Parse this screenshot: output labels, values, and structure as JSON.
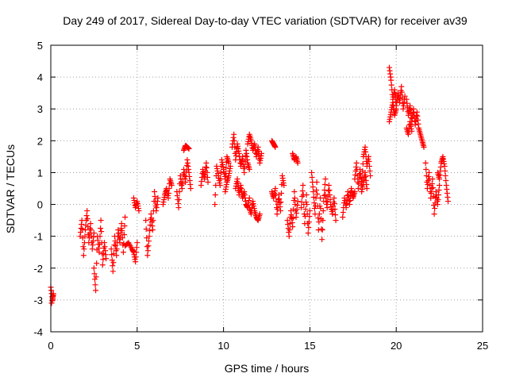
{
  "chart_data": {
    "type": "scatter",
    "title": "Day 249 of 2017, Sidereal Day-to-day VTEC variation (SDTVAR) for receiver av39",
    "xlabel": "GPS time / hours",
    "ylabel": "SDTVAR / TECUs",
    "xlim": [
      0,
      25
    ],
    "ylim": [
      -4,
      5
    ],
    "xticks": [
      0,
      5,
      10,
      15,
      20,
      25
    ],
    "yticks": [
      -4,
      -3,
      -2,
      -1,
      0,
      1,
      2,
      3,
      4,
      5
    ],
    "xtick_labels": [
      "0",
      "5",
      "10",
      "15",
      "20",
      "25"
    ],
    "ytick_labels": [
      "-4",
      "-3",
      "-2",
      "-1",
      "0",
      "1",
      "2",
      "3",
      "4",
      "5"
    ],
    "grid": true,
    "marker": "+",
    "color": "#ff0000",
    "series": [
      {
        "name": "SDTVAR",
        "segments": [
          [
            [
              0.0,
              -2.6
            ],
            [
              0.1,
              -3.0
            ],
            [
              0.15,
              -2.8
            ],
            [
              0.05,
              -3.1
            ]
          ],
          [
            [
              1.7,
              -1.0
            ],
            [
              1.8,
              -0.5
            ],
            [
              1.9,
              -1.6
            ],
            [
              2.0,
              -0.8
            ],
            [
              2.1,
              -0.2
            ],
            [
              2.2,
              -1.2
            ],
            [
              2.3,
              -0.6
            ],
            [
              2.4,
              -1.4
            ],
            [
              2.5,
              -0.9
            ]
          ],
          [
            [
              2.5,
              -2.0
            ],
            [
              2.6,
              -2.7
            ],
            [
              2.7,
              -1.0
            ],
            [
              2.8,
              -1.5
            ],
            [
              2.9,
              -0.5
            ],
            [
              3.0,
              -1.9
            ],
            [
              3.1,
              -1.2
            ],
            [
              3.2,
              -1.7
            ]
          ],
          [
            [
              3.5,
              -1.4
            ],
            [
              3.6,
              -2.1
            ],
            [
              3.7,
              -1.0
            ],
            [
              3.8,
              -1.6
            ],
            [
              3.9,
              -0.8
            ],
            [
              4.0,
              -1.2
            ],
            [
              4.1,
              -0.6
            ],
            [
              4.2,
              -1.5
            ],
            [
              4.3,
              -0.4
            ]
          ],
          [
            [
              4.3,
              -1.3
            ],
            [
              4.5,
              -1.2
            ],
            [
              4.7,
              -1.4
            ],
            [
              4.8,
              -1.5
            ],
            [
              4.9,
              -1.8
            ],
            [
              5.0,
              -1.2
            ]
          ],
          [
            [
              4.8,
              0.2
            ],
            [
              4.9,
              -0.1
            ],
            [
              5.0,
              0.1
            ],
            [
              5.1,
              -0.2
            ]
          ],
          [
            [
              5.5,
              -0.5
            ],
            [
              5.6,
              -1.6
            ],
            [
              5.7,
              -1.0
            ],
            [
              5.8,
              -0.3
            ],
            [
              5.9,
              -0.8
            ],
            [
              6.0,
              0.4
            ],
            [
              6.1,
              -0.2
            ],
            [
              6.2,
              0.2
            ]
          ],
          [
            [
              6.5,
              0.0
            ],
            [
              6.6,
              0.3
            ],
            [
              6.7,
              0.5
            ],
            [
              6.8,
              0.2
            ],
            [
              6.9,
              0.8
            ],
            [
              7.0,
              0.6
            ]
          ],
          [
            [
              7.3,
              0.4
            ],
            [
              7.4,
              -0.1
            ],
            [
              7.5,
              0.9
            ],
            [
              7.6,
              0.5
            ],
            [
              7.7,
              1.1
            ],
            [
              7.8,
              0.7
            ],
            [
              7.9,
              1.4
            ],
            [
              8.0,
              1.0
            ],
            [
              8.1,
              0.5
            ]
          ],
          [
            [
              7.7,
              1.7
            ],
            [
              7.8,
              1.85
            ],
            [
              7.9,
              1.8
            ],
            [
              8.0,
              1.75
            ]
          ],
          [
            [
              8.7,
              0.6
            ],
            [
              8.8,
              1.1
            ],
            [
              8.9,
              0.8
            ],
            [
              9.0,
              1.3
            ],
            [
              9.1,
              0.7
            ]
          ],
          [
            [
              9.5,
              0.0
            ],
            [
              9.6,
              1.2
            ],
            [
              9.7,
              0.9
            ],
            [
              9.8,
              0.6
            ],
            [
              9.9,
              1.4
            ],
            [
              10.0,
              1.1
            ],
            [
              10.1,
              0.8
            ],
            [
              10.2,
              1.5
            ],
            [
              10.3,
              1.3
            ]
          ],
          [
            [
              10.1,
              0.4
            ],
            [
              10.2,
              0.7
            ],
            [
              10.3,
              0.9
            ],
            [
              10.4,
              1.2
            ]
          ],
          [
            [
              10.5,
              1.8
            ],
            [
              10.6,
              2.2
            ],
            [
              10.7,
              1.4
            ],
            [
              10.8,
              1.9
            ],
            [
              10.9,
              1.6
            ],
            [
              11.0,
              1.2
            ],
            [
              11.1,
              1.5
            ],
            [
              11.2,
              1.0
            ],
            [
              11.3,
              1.7
            ],
            [
              11.4,
              1.3
            ],
            [
              11.5,
              1.1
            ]
          ],
          [
            [
              10.7,
              0.5
            ],
            [
              10.8,
              0.8
            ],
            [
              10.9,
              0.3
            ],
            [
              11.0,
              0.6
            ],
            [
              11.1,
              0.2
            ],
            [
              11.2,
              0.4
            ],
            [
              11.3,
              0.0
            ],
            [
              11.4,
              -0.1
            ],
            [
              11.5,
              0.2
            ]
          ],
          [
            [
              11.4,
              1.9
            ],
            [
              11.5,
              2.2
            ],
            [
              11.6,
              2.0
            ],
            [
              11.7,
              1.7
            ],
            [
              11.8,
              1.9
            ],
            [
              11.9,
              1.5
            ],
            [
              12.0,
              1.8
            ],
            [
              12.1,
              1.3
            ],
            [
              12.2,
              1.6
            ]
          ],
          [
            [
              11.5,
              -0.1
            ],
            [
              11.6,
              -0.3
            ],
            [
              11.7,
              0.1
            ],
            [
              11.8,
              -0.2
            ],
            [
              11.9,
              -0.4
            ],
            [
              12.0,
              -0.5
            ],
            [
              12.1,
              -0.3
            ]
          ],
          [
            [
              12.8,
              2.0
            ],
            [
              12.9,
              1.9
            ],
            [
              13.0,
              1.8
            ]
          ],
          [
            [
              12.8,
              0.4
            ],
            [
              12.9,
              0.2
            ],
            [
              13.0,
              0.5
            ],
            [
              13.1,
              -0.3
            ],
            [
              13.2,
              0.3
            ],
            [
              13.3,
              -0.2
            ],
            [
              13.4,
              0.9
            ],
            [
              13.5,
              0.6
            ]
          ],
          [
            [
              13.7,
              -0.5
            ],
            [
              13.8,
              -1.0
            ],
            [
              13.9,
              -0.2
            ],
            [
              14.0,
              -0.7
            ],
            [
              14.1,
              0.4
            ],
            [
              14.2,
              -0.4
            ],
            [
              14.3,
              0.1
            ]
          ],
          [
            [
              14.0,
              1.6
            ],
            [
              14.1,
              1.4
            ],
            [
              14.2,
              1.5
            ],
            [
              14.3,
              1.3
            ]
          ],
          [
            [
              14.5,
              -0.1
            ],
            [
              14.6,
              0.6
            ],
            [
              14.7,
              -0.6
            ],
            [
              14.8,
              0.3
            ],
            [
              14.9,
              -0.9
            ],
            [
              15.0,
              -0.2
            ]
          ],
          [
            [
              15.1,
              1.0
            ],
            [
              15.2,
              0.4
            ],
            [
              15.3,
              -0.3
            ],
            [
              15.4,
              0.7
            ],
            [
              15.5,
              -0.8
            ],
            [
              15.6,
              0.2
            ],
            [
              15.7,
              -1.1
            ],
            [
              15.8,
              0.1
            ],
            [
              15.9,
              0.8
            ]
          ],
          [
            [
              15.9,
              0.3
            ],
            [
              16.0,
              -0.1
            ],
            [
              16.1,
              0.6
            ],
            [
              16.2,
              0.0
            ],
            [
              16.3,
              -0.3
            ],
            [
              16.4,
              0.2
            ],
            [
              16.5,
              -0.5
            ]
          ],
          [
            [
              16.9,
              -0.4
            ],
            [
              17.0,
              0.2
            ],
            [
              17.1,
              -0.1
            ],
            [
              17.2,
              0.4
            ],
            [
              17.3,
              0.0
            ],
            [
              17.4,
              0.5
            ],
            [
              17.5,
              0.2
            ],
            [
              17.6,
              0.4
            ]
          ],
          [
            [
              17.6,
              0.8
            ],
            [
              17.7,
              1.3
            ],
            [
              17.8,
              0.5
            ],
            [
              17.9,
              1.1
            ],
            [
              18.0,
              0.6
            ],
            [
              18.1,
              1.5
            ],
            [
              18.2,
              1.8
            ],
            [
              18.3,
              1.2
            ],
            [
              18.4,
              1.5
            ],
            [
              18.5,
              0.9
            ]
          ],
          [
            [
              18.0,
              0.4
            ],
            [
              18.1,
              0.7
            ],
            [
              18.2,
              1.0
            ],
            [
              18.3,
              0.5
            ]
          ],
          [
            [
              19.6,
              4.3
            ],
            [
              19.7,
              3.9
            ],
            [
              19.8,
              3.3
            ],
            [
              19.9,
              3.6
            ],
            [
              20.0,
              3.1
            ],
            [
              20.1,
              3.5
            ],
            [
              20.2,
              3.2
            ],
            [
              20.3,
              3.7
            ],
            [
              20.4,
              3.0
            ],
            [
              20.5,
              3.4
            ]
          ],
          [
            [
              19.6,
              2.6
            ],
            [
              19.7,
              2.9
            ],
            [
              19.8,
              3.2
            ],
            [
              19.9,
              2.8
            ],
            [
              20.0,
              3.0
            ]
          ],
          [
            [
              20.6,
              3.3
            ],
            [
              20.7,
              2.8
            ],
            [
              20.8,
              3.1
            ],
            [
              20.9,
              2.6
            ],
            [
              21.0,
              3.0
            ],
            [
              21.1,
              2.5
            ],
            [
              21.2,
              2.9
            ],
            [
              21.3,
              2.4
            ],
            [
              21.4,
              2.2
            ],
            [
              21.5,
              2.0
            ],
            [
              21.6,
              1.8
            ]
          ],
          [
            [
              20.6,
              2.4
            ],
            [
              20.7,
              2.2
            ],
            [
              20.8,
              2.6
            ],
            [
              20.9,
              2.3
            ]
          ],
          [
            [
              21.7,
              1.3
            ],
            [
              21.8,
              0.5
            ],
            [
              21.9,
              1.0
            ],
            [
              22.0,
              0.2
            ],
            [
              22.1,
              0.8
            ],
            [
              22.2,
              -0.3
            ],
            [
              22.3,
              0.4
            ],
            [
              22.4,
              0.0
            ],
            [
              22.5,
              0.6
            ]
          ],
          [
            [
              22.4,
              1.0
            ],
            [
              22.5,
              0.8
            ],
            [
              22.6,
              1.3
            ],
            [
              22.7,
              1.5
            ],
            [
              22.8,
              1.2
            ],
            [
              22.9,
              0.6
            ],
            [
              23.0,
              0.1
            ]
          ]
        ]
      }
    ]
  }
}
